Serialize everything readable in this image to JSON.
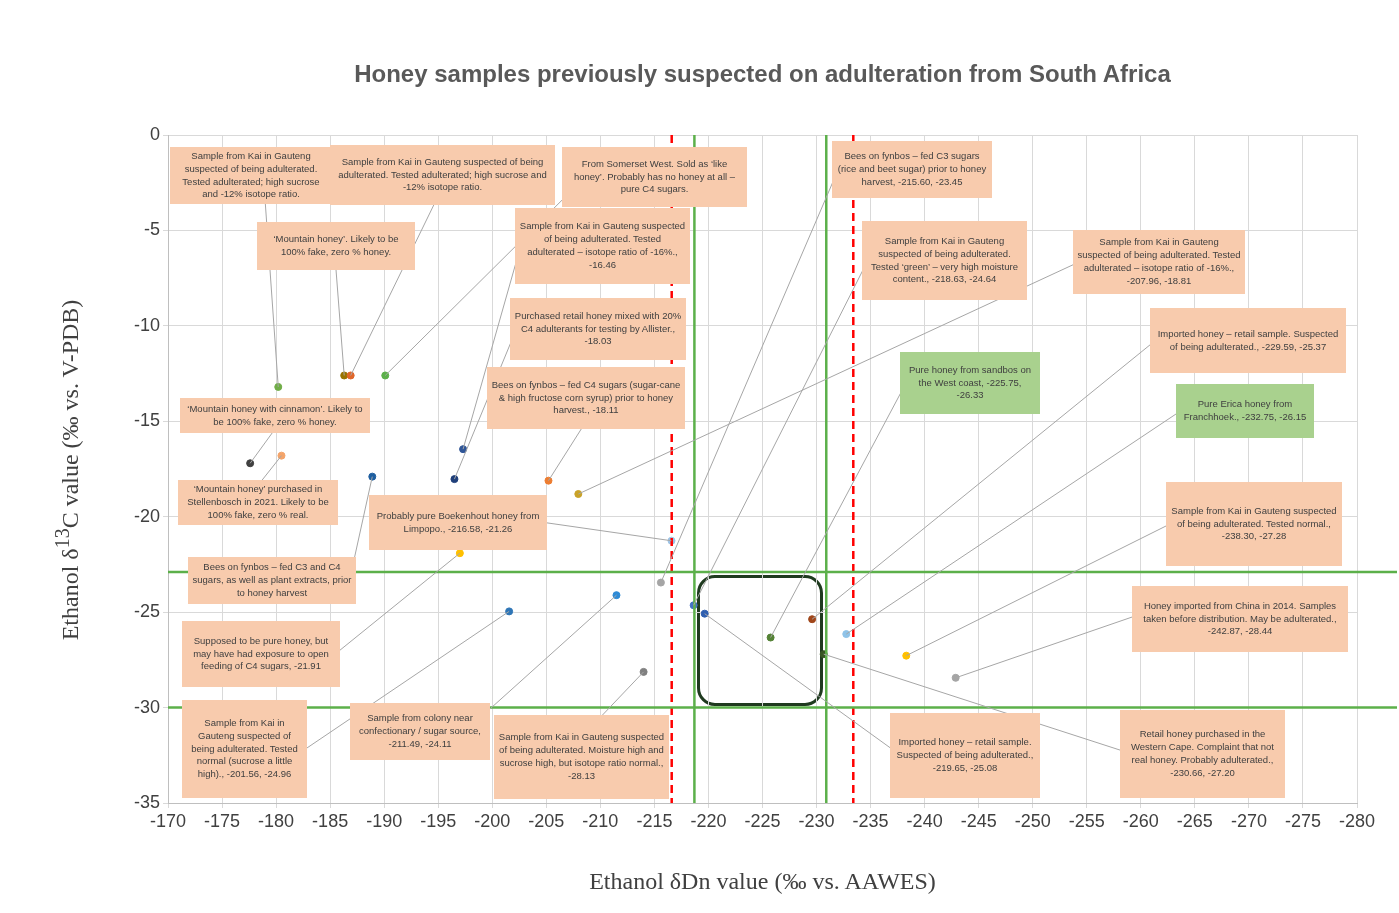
{
  "chart_data": {
    "type": "scatter",
    "title": "Honey samples previously suspected on adulteration from South Africa",
    "xlabel": "Ethanol δDn value (‰ vs. AAWES)",
    "ylabel": "Ethanol δ$^{13}$C value (‰ vs. V-PDB)",
    "x": [
      -180.2,
      -186.3,
      -186.9,
      -190.1,
      -177.6,
      -180.5,
      -188.9,
      -197.3,
      -196.5,
      -205.2,
      -207.96,
      -216.58,
      -197.0,
      -215.6,
      -201.56,
      -211.49,
      -214.0,
      -218.63,
      -219.65,
      -225.75,
      -229.59,
      -230.66,
      -232.75,
      -238.3,
      -242.87
    ],
    "values": [
      -13.2,
      -12.6,
      -12.6,
      -12.6,
      -17.2,
      -16.8,
      -17.9,
      -16.46,
      -18.03,
      -18.11,
      -18.81,
      -21.26,
      -21.91,
      -23.45,
      -24.96,
      -24.11,
      -28.13,
      -24.64,
      -25.08,
      -26.33,
      -25.37,
      -27.2,
      -26.15,
      -27.28,
      -28.44
    ],
    "colors": [
      "#70ad47",
      "#997300",
      "#e0662a",
      "#5cb04a",
      "#404040",
      "#f4a46a",
      "#1f5fa0",
      "#2f5597",
      "#1f3f7a",
      "#ed7d31",
      "#c9a227",
      "#9dc3e6",
      "#ffc000",
      "#a5a5a5",
      "#2e75b6",
      "#2e8bd6",
      "#808080",
      "#4472c4",
      "#2f5fb0",
      "#548235",
      "#a0461a",
      "#375623",
      "#8fc3e8",
      "#ffc000",
      "#a5a5a5"
    ],
    "xlim": [
      -170,
      -280
    ],
    "xticks": [
      -170,
      -175,
      -180,
      -185,
      -190,
      -195,
      -200,
      -205,
      -210,
      -215,
      -220,
      -225,
      -230,
      -235,
      -240,
      -245,
      -250,
      -255,
      -260,
      -265,
      -270,
      -275,
      -280
    ],
    "ylim": [
      -35,
      0
    ],
    "yticks": [
      -35,
      -30,
      -25,
      -20,
      -15,
      -10,
      -5,
      0
    ],
    "grid": true,
    "marker": "circle",
    "ref_lines": [
      {
        "axis": "x",
        "value": -218.7,
        "color": "#5cb04a",
        "line_style": "solid"
      },
      {
        "axis": "x",
        "value": -230.9,
        "color": "#5cb04a",
        "line_style": "solid"
      },
      {
        "axis": "x",
        "value": -216.6,
        "color": "#ff0000",
        "line_style": "dashed"
      },
      {
        "axis": "x",
        "value": -233.4,
        "color": "#ff0000",
        "line_style": "dashed"
      },
      {
        "axis": "y",
        "value": -22.9,
        "color": "#5cb04a",
        "line_style": "solid"
      },
      {
        "axis": "y",
        "value": -30.0,
        "color": "#5cb04a",
        "line_style": "solid"
      }
    ],
    "annotations": [
      {
        "text": "Sample from Kai in Gauteng suspected of being adulterated. Tested adulterated; high sucrose and -12% isotope ratio.",
        "x": -180.2,
        "y": -13.2
      },
      {
        "text": "‘Mountain honey’. Likely to be 100% fake, zero % honey.",
        "x": -186.3,
        "y": -12.6
      },
      {
        "text": "Sample from Kai in Gauteng suspected of being adulterated. Tested adulterated; high sucrose and -12% isotope ratio.",
        "x": -186.9,
        "y": -12.6
      },
      {
        "text": "From Somerset West.  Sold as ‘like honey’.  Probably has no honey at all – pure C4 sugars.",
        "x": -190.1,
        "y": -12.6
      },
      {
        "text": "‘Mountain honey with cinnamon’. Likely to be 100% fake, zero % honey.",
        "x": -177.6,
        "y": -17.2
      },
      {
        "text": "‘Mountain honey’ purchased in Stellenbosch in 2021.  Likely to be 100% fake, zero % real.",
        "x": -180.5,
        "y": -16.8
      },
      {
        "text": "Bees on fynbos – fed C3 and C4 sugars, as well as plant extracts, prior to honey harvest",
        "x": -188.9,
        "y": -17.9
      },
      {
        "text": "Sample from Kai in Gauteng suspected of being adulterated. Tested adulterated – isotope ratio of -16%., -16.46",
        "x": -197.3,
        "y": -16.46
      },
      {
        "text": "Purchased retail honey mixed with 20% C4 adulterants for testing by Allister., -18.03",
        "x": -196.5,
        "y": -18.03
      },
      {
        "text": "Bees on fynbos – fed C4 sugars (sugar-cane & high fructose corn syrup) prior to honey harvest., -18.11",
        "x": -205.2,
        "y": -18.11
      },
      {
        "text": "Sample from Kai in Gauteng suspected of being adulterated. Tested adulterated – isotope ratio of -16%., -207.96, -18.81",
        "x": -207.96,
        "y": -18.81
      },
      {
        "text": "Probably pure Boekenhout honey from Limpopo., -216.58, -21.26",
        "x": -216.58,
        "y": -21.26
      },
      {
        "text": "Supposed to be pure honey, but may have had exposure to open feeding of C4 sugars, -21.91",
        "x": -197.0,
        "y": -21.91
      },
      {
        "text": "Bees on fynbos – fed C3 sugars (rice and beet sugar) prior to honey harvest, -215.60, -23.45",
        "x": -215.6,
        "y": -23.45
      },
      {
        "text": "Sample from Kai in Gauteng suspected of being adulterated. Tested normal (sucrose a little high)., -201.56, -24.96",
        "x": -201.56,
        "y": -24.96
      },
      {
        "text": "Sample from colony near confectionary / sugar source, -211.49, -24.11",
        "x": -211.49,
        "y": -24.11
      },
      {
        "text": "Sample from Kai in Gauteng suspected of being adulterated. Moisture high and sucrose high, but isotope ratio normal., -28.13",
        "x": -214.0,
        "y": -28.13
      },
      {
        "text": "Sample from Kai in Gauteng suspected of being adulterated. Tested ‘green’ – very high moisture content., -218.63, -24.64",
        "x": -218.63,
        "y": -24.64
      },
      {
        "text": "Imported honey – retail sample. Suspected of being adulterated., -219.65, -25.08",
        "x": -219.65,
        "y": -25.08
      },
      {
        "text": "Pure honey from sandbos on the West coast, -225.75, -26.33",
        "x": -225.75,
        "y": -26.33
      },
      {
        "text": "Imported honey – retail sample. Suspected of being adulterated., -229.59, -25.37",
        "x": -229.59,
        "y": -25.37
      },
      {
        "text": "Retail honey purchased in the Western Cape.  Complaint that not real honey.  Probably adulterated., -230.66, -27.20",
        "x": -230.66,
        "y": -27.2
      },
      {
        "text": "Pure Erica honey from Franchhoek., -232.75, -26.15",
        "x": -232.75,
        "y": -26.15
      },
      {
        "text": "Sample from Kai in Gauteng suspected of being adulterated. Tested normal., -238.30, -27.28",
        "x": -238.3,
        "y": -27.28
      },
      {
        "text": "Honey imported from China in 2014. Samples taken before distribution. May be adulterated., -242.87, -28.44",
        "x": -242.87,
        "y": -28.44
      }
    ]
  }
}
